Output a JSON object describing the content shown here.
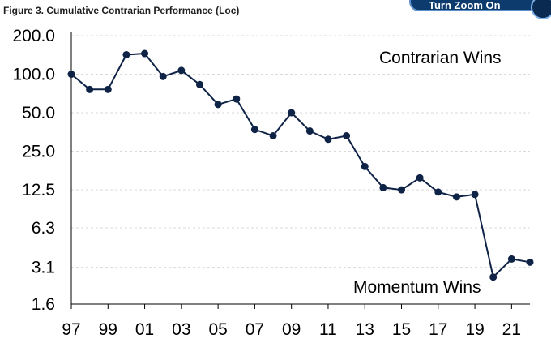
{
  "figure_title": "Figure 3. Cumulative Contrarian Performance (Loc)",
  "badge": {
    "label": "Turn Zoom On",
    "icon": "magnifier-icon"
  },
  "colors": {
    "line": "#0f2347",
    "grid": "#d9d9d9",
    "axis": "#000000"
  },
  "chart_data": {
    "type": "line",
    "title": "",
    "xlabel": "",
    "ylabel": "",
    "y_scale": "log2",
    "ylim": [
      1.6,
      200.0
    ],
    "y_ticks": [
      200.0,
      100.0,
      50.0,
      25.0,
      12.5,
      6.3,
      3.1,
      1.6
    ],
    "y_tick_labels": [
      "200.0",
      "100.0",
      "50.0",
      "25.0",
      "12.5",
      "6.3",
      "3.1",
      "1.6"
    ],
    "x_ticks": [
      1997,
      1999,
      2001,
      2003,
      2005,
      2007,
      2009,
      2011,
      2013,
      2015,
      2017,
      2019,
      2021
    ],
    "x_tick_labels": [
      "97",
      "99",
      "01",
      "03",
      "05",
      "07",
      "09",
      "11",
      "13",
      "15",
      "17",
      "19",
      "21"
    ],
    "xlim": [
      1997,
      2022
    ],
    "grid": "horizontal",
    "series": [
      {
        "x": [
          1997,
          1998,
          1999,
          2000,
          2001,
          2002,
          2003,
          2004,
          2005,
          2006,
          2007,
          2008,
          2009,
          2010,
          2011,
          2012,
          2013,
          2014,
          2015,
          2016,
          2017,
          2018,
          2019,
          2020,
          2021,
          2022
        ],
        "values": [
          100,
          76,
          76,
          142,
          145,
          96,
          107,
          83,
          58,
          64,
          37,
          33,
          50,
          36,
          31,
          33,
          19,
          13,
          12.5,
          15.5,
          12,
          11,
          11.5,
          2.6,
          3.6,
          3.4
        ]
      }
    ],
    "annotations": [
      "Contrarian Wins",
      "Momentum Wins"
    ]
  }
}
